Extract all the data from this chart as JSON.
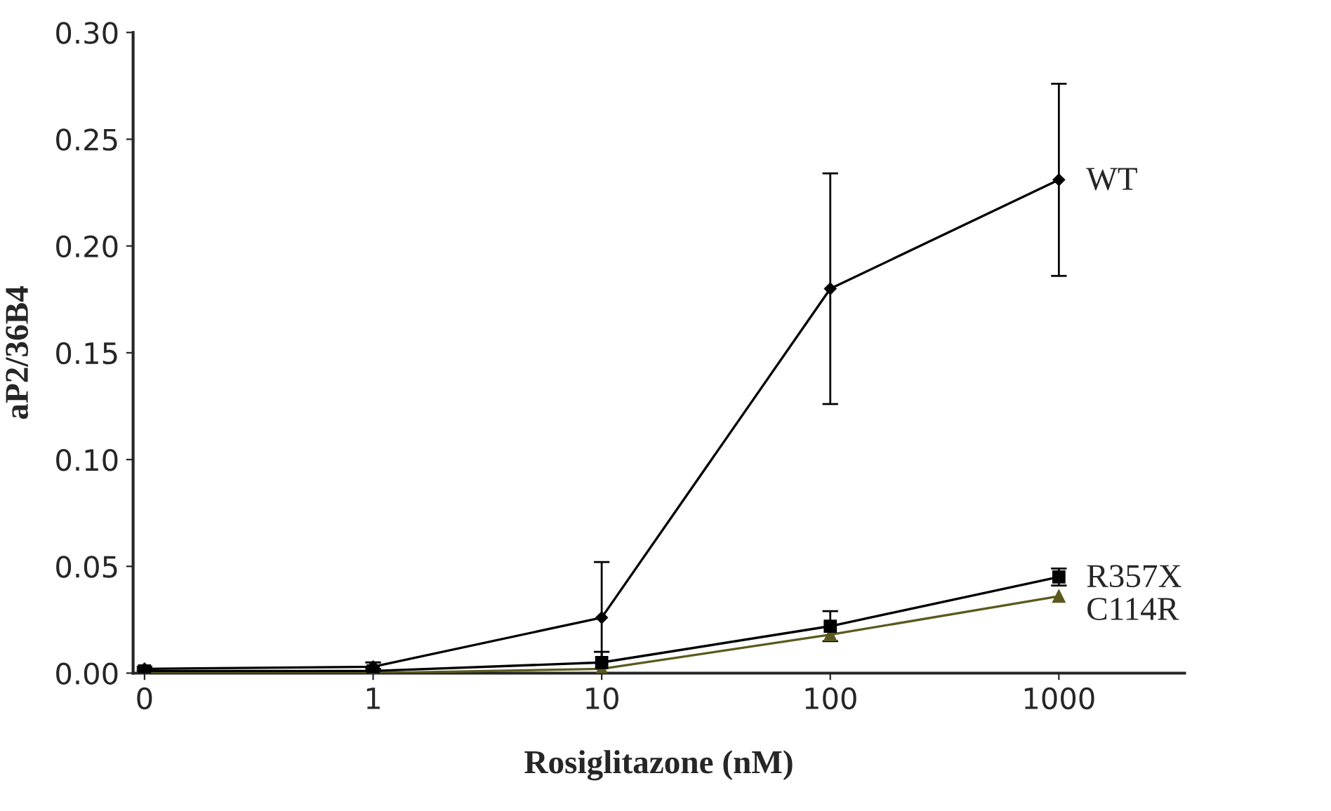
{
  "chart_data": {
    "type": "line",
    "xlabel": "Rosiglitazone (nM)",
    "ylabel": "aP2/36B4",
    "categories": [
      "0",
      "1",
      "10",
      "100",
      "1000"
    ],
    "ylim": [
      0,
      0.3
    ],
    "yticks": [
      {
        "value": 0,
        "label": "0.00"
      },
      {
        "value": 0.05,
        "label": "0.05"
      },
      {
        "value": 0.1,
        "label": "0.10"
      },
      {
        "value": 0.15,
        "label": "0.15"
      },
      {
        "value": 0.2,
        "label": "0.20"
      },
      {
        "value": 0.25,
        "label": "0.25"
      },
      {
        "value": 0.3,
        "label": "0.30"
      }
    ],
    "grid": false,
    "legend": false,
    "series": [
      {
        "name": "WT",
        "color": "#000000",
        "marker": "diamond",
        "values": [
          0.002,
          0.003,
          0.026,
          0.18,
          0.231
        ],
        "errors": [
          0.001,
          0.002,
          0.026,
          0.054,
          0.045
        ]
      },
      {
        "name": "R357X",
        "color": "#000000",
        "marker": "square",
        "values": [
          0.001,
          0.001,
          0.005,
          0.022,
          0.045
        ],
        "errors": [
          0.001,
          0.001,
          0.005,
          0.007,
          0.004
        ]
      },
      {
        "name": "C114R",
        "color": "#5a5a1e",
        "marker": "triangle",
        "values": [
          0.0,
          0.0,
          0.002,
          0.018,
          0.036
        ],
        "errors": [
          null,
          null,
          null,
          null,
          null
        ]
      }
    ]
  }
}
